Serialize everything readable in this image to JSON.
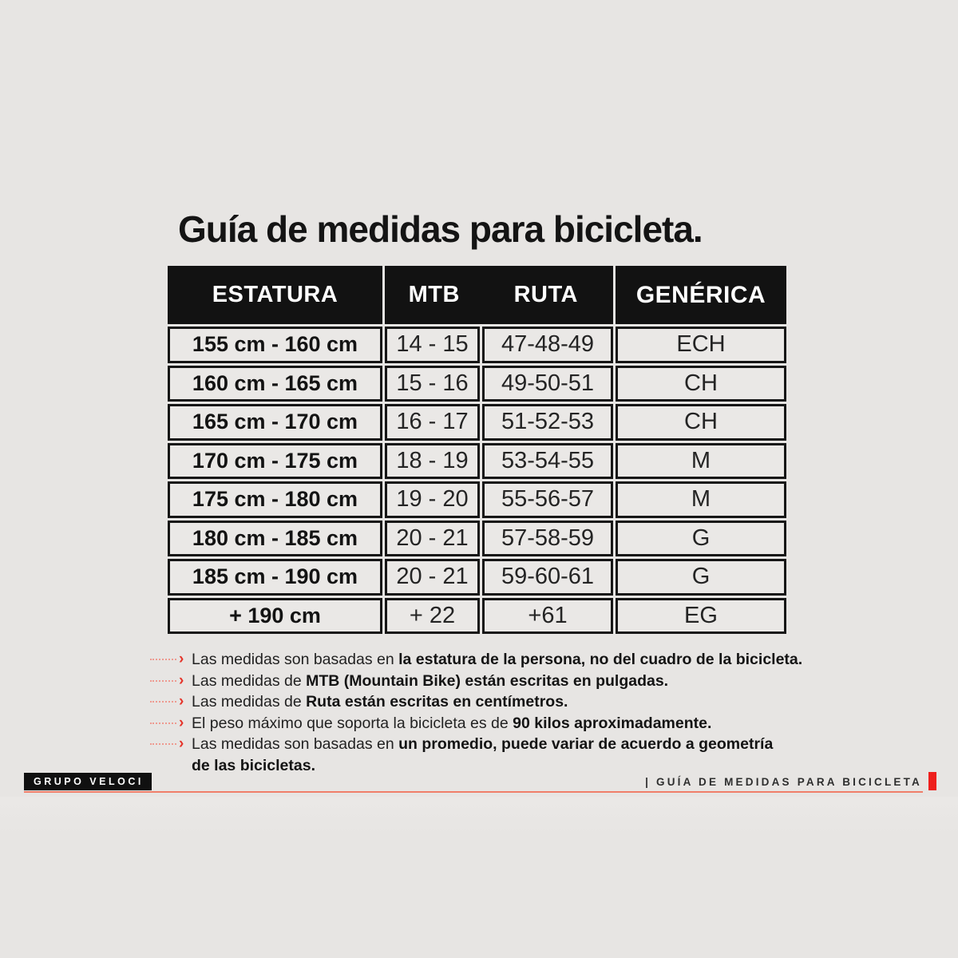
{
  "page": {
    "title": "Guía de medidas para bicicleta."
  },
  "table": {
    "headers": {
      "estatura": "ESTATURA",
      "mtb": "MTB",
      "ruta": "RUTA",
      "generica": "GENÉRICA"
    },
    "rows": [
      {
        "estatura": "155 cm - 160 cm",
        "mtb": "14 - 15",
        "ruta": "47-48-49",
        "generica": "ECH"
      },
      {
        "estatura": "160 cm - 165 cm",
        "mtb": "15 - 16",
        "ruta": "49-50-51",
        "generica": "CH"
      },
      {
        "estatura": "165 cm - 170 cm",
        "mtb": "16 - 17",
        "ruta": "51-52-53",
        "generica": "CH"
      },
      {
        "estatura": "170 cm - 175 cm",
        "mtb": "18 - 19",
        "ruta": "53-54-55",
        "generica": "M"
      },
      {
        "estatura": "175 cm - 180 cm",
        "mtb": "19 - 20",
        "ruta": "55-56-57",
        "generica": "M"
      },
      {
        "estatura": "180 cm - 185 cm",
        "mtb": "20 - 21",
        "ruta": "57-58-59",
        "generica": "G"
      },
      {
        "estatura": "185 cm - 190 cm",
        "mtb": "20 - 21",
        "ruta": "59-60-61",
        "generica": "G"
      },
      {
        "estatura": "+ 190 cm",
        "mtb": "+ 22",
        "ruta": "+61",
        "generica": "EG"
      }
    ]
  },
  "notes": [
    {
      "lead": "Las medidas son basadas en ",
      "bold": "la estatura de la persona, no del cuadro de la bicicleta.",
      "bold2": ""
    },
    {
      "lead": "Las medidas de ",
      "bold": "MTB (Mountain Bike) están escritas en pulgadas.",
      "bold2": ""
    },
    {
      "lead": "Las medidas de ",
      "bold": "Ruta están escritas en centímetros.",
      "bold2": ""
    },
    {
      "lead": "El peso máximo que soporta la bicicleta es de ",
      "bold": "90 kilos aproximadamente.",
      "bold2": ""
    },
    {
      "lead": "Las medidas son basadas en ",
      "bold": "un promedio, puede variar de acuerdo a geometría",
      "bold2": "de las bicicletas."
    }
  ],
  "footer": {
    "brand": "GRUPO VELOCI",
    "caption": "| GUÍA DE MEDIDAS PARA BICICLETA"
  },
  "icons": {
    "note_arrow": "›"
  },
  "colors": {
    "background": "#e7e5e3",
    "table_black": "#121212",
    "cell_bg": "#eae8e6",
    "accent_red": "#e5352b",
    "leader_red": "#ee9a90",
    "rule_red": "#f07f6a",
    "marker_red": "#ee201d"
  }
}
